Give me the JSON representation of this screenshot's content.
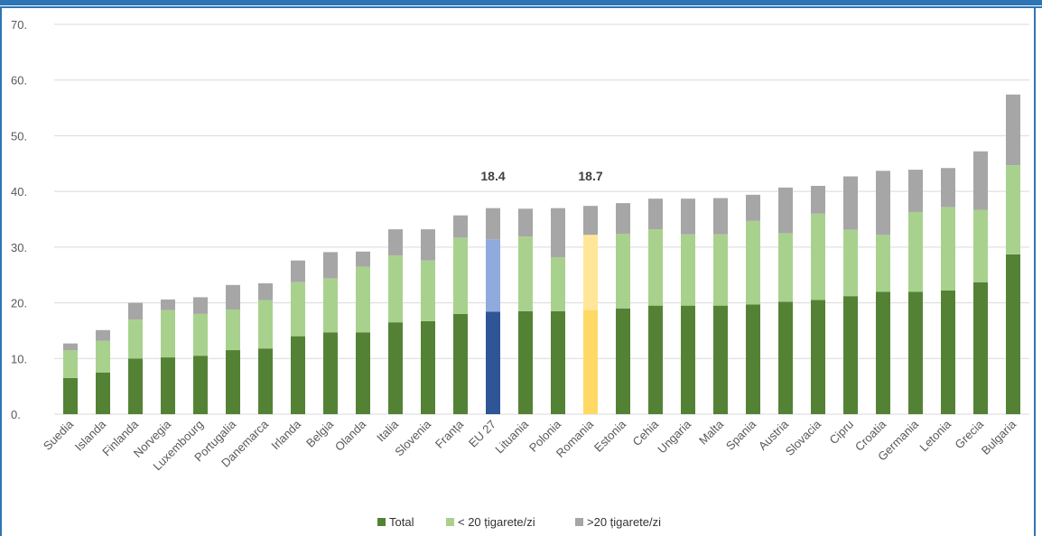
{
  "chart_data": {
    "type": "bar",
    "stacked": true,
    "categories": [
      "Suedia",
      "Islanda",
      "Finlanda",
      "Norvegia",
      "Luxembourg",
      "Portugalia",
      "Danemarca",
      "Irlanda",
      "Belgia",
      "Olanda",
      "Italia",
      "Slovenia",
      "Franța",
      "EU 27",
      "Lituania",
      "Polonia",
      "Romania",
      "Estonia",
      "Cehia",
      "Ungaria",
      "Malta",
      "Spania",
      "Austria",
      "Slovacia",
      "Cipru",
      "Croatia",
      "Germania",
      "Letonia",
      "Grecia",
      "Bulgaria"
    ],
    "series": [
      {
        "name": "Total",
        "color": "#548235",
        "values": [
          6.5,
          7.5,
          10,
          10.2,
          10.5,
          11.5,
          11.8,
          14,
          14.7,
          14.7,
          16.5,
          16.7,
          18,
          18.4,
          18.5,
          18.5,
          18.7,
          19,
          19.5,
          19.5,
          19.5,
          19.7,
          20.2,
          20.5,
          21.2,
          22,
          22,
          22.2,
          23.7,
          28.7
        ]
      },
      {
        "name": "< 20 țigarete/zi",
        "color": "#a9d18e",
        "values": [
          5,
          5.7,
          7,
          8.5,
          7.5,
          7.3,
          8.7,
          9.7,
          9.7,
          11.8,
          12,
          10.9,
          13.7,
          13,
          13.4,
          9.7,
          13.5,
          13.4,
          13.7,
          12.8,
          12.8,
          15,
          12.3,
          15.5,
          11.9,
          10.2,
          14.3,
          15,
          13,
          16
        ]
      },
      {
        "name": ">20 țigarete/zi",
        "color": "#a6a6a6",
        "values": [
          1.2,
          1.9,
          3,
          1.9,
          3,
          4.4,
          3,
          3.9,
          4.7,
          2.7,
          4.7,
          5.6,
          4,
          5.6,
          5,
          8.8,
          5.2,
          5.5,
          5.5,
          6.4,
          6.5,
          4.7,
          8.2,
          5,
          9.6,
          11.5,
          7.6,
          7,
          10.5,
          12.7
        ]
      }
    ],
    "highlight": {
      "EU 27": [
        "#2f5597",
        "#8faadc",
        "#a6a6a6"
      ],
      "Romania": [
        "#ffd966",
        "#ffe699",
        "#a6a6a6"
      ]
    },
    "annotations": [
      {
        "category": "EU 27",
        "text": "18.4"
      },
      {
        "category": "Romania",
        "text": "18.7"
      }
    ],
    "ylim": [
      0,
      70
    ],
    "yticks": [
      "0.",
      "10.",
      "20.",
      "30.",
      "40.",
      "50.",
      "60.",
      "70."
    ],
    "grid": true,
    "legend_position": "bottom",
    "xlabel": "",
    "ylabel": ""
  },
  "legend": [
    {
      "label": "Total",
      "color": "#548235"
    },
    {
      "label": "< 20 țigarete/zi",
      "color": "#a9d18e"
    },
    {
      "label": ">20 țigarete/zi",
      "color": "#a6a6a6"
    }
  ]
}
